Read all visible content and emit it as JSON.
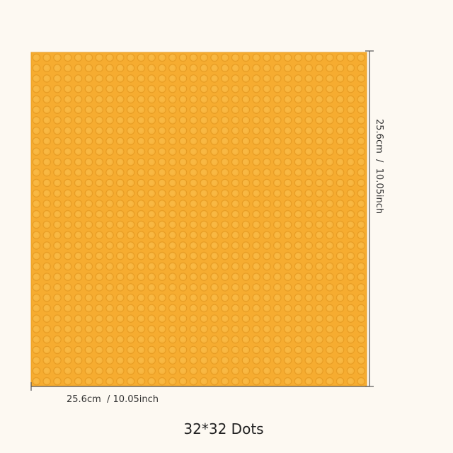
{
  "dimensions": {
    "height_label": "25.6cm  /  10.05inch",
    "width_label": "25.6cm  / 10.05inch"
  },
  "caption": "32*32 Dots"
}
